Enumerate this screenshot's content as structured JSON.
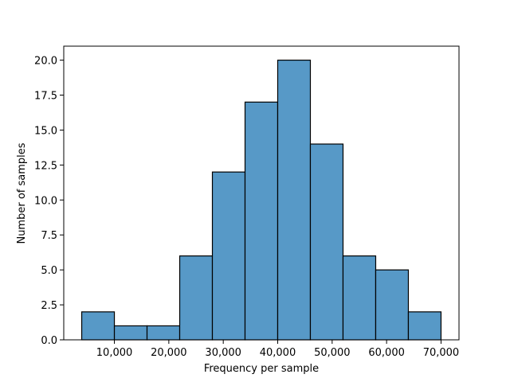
{
  "chart_data": {
    "type": "bar",
    "title": "",
    "xlabel": "Frequency per sample",
    "ylabel": "Number of samples",
    "bins": [
      {
        "start": 4000,
        "end": 10000,
        "count": 2
      },
      {
        "start": 10000,
        "end": 16000,
        "count": 1
      },
      {
        "start": 16000,
        "end": 22000,
        "count": 1
      },
      {
        "start": 22000,
        "end": 28000,
        "count": 6
      },
      {
        "start": 28000,
        "end": 34000,
        "count": 12
      },
      {
        "start": 34000,
        "end": 40000,
        "count": 17
      },
      {
        "start": 40000,
        "end": 46000,
        "count": 20
      },
      {
        "start": 46000,
        "end": 52000,
        "count": 14
      },
      {
        "start": 52000,
        "end": 58000,
        "count": 6
      },
      {
        "start": 58000,
        "end": 64000,
        "count": 5
      },
      {
        "start": 64000,
        "end": 70000,
        "count": 2
      }
    ],
    "xlim": [
      700,
      73300
    ],
    "ylim": [
      0,
      21
    ],
    "x_ticks": [
      {
        "value": 10000,
        "label": "10,000"
      },
      {
        "value": 20000,
        "label": "20,000"
      },
      {
        "value": 30000,
        "label": "30,000"
      },
      {
        "value": 40000,
        "label": "40,000"
      },
      {
        "value": 50000,
        "label": "50,000"
      },
      {
        "value": 60000,
        "label": "60,000"
      },
      {
        "value": 70000,
        "label": "70,000"
      }
    ],
    "y_ticks": [
      {
        "value": 0,
        "label": "0.0"
      },
      {
        "value": 2.5,
        "label": "2.5"
      },
      {
        "value": 5,
        "label": "5.0"
      },
      {
        "value": 7.5,
        "label": "7.5"
      },
      {
        "value": 10,
        "label": "10.0"
      },
      {
        "value": 12.5,
        "label": "12.5"
      },
      {
        "value": 15,
        "label": "15.0"
      },
      {
        "value": 17.5,
        "label": "17.5"
      },
      {
        "value": 20,
        "label": "20.0"
      }
    ],
    "grid": false,
    "colors": {
      "bar_fill": "#5799c7",
      "bar_edge": "#000000",
      "axis": "#000000"
    }
  }
}
